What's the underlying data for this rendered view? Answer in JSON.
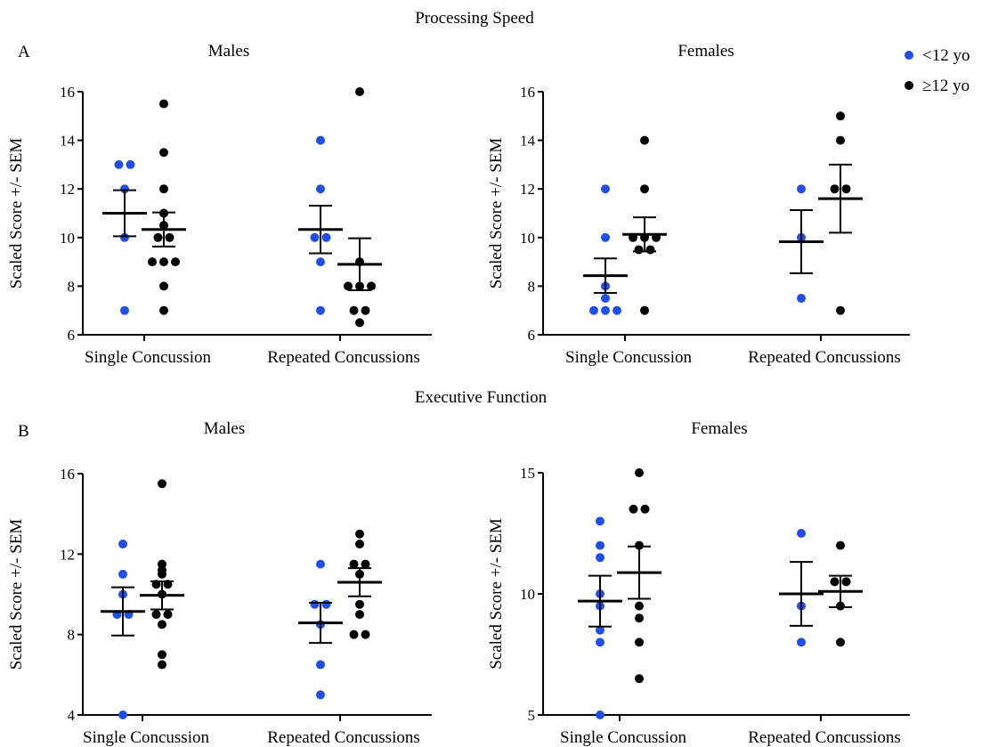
{
  "sections": [
    {
      "letter": "A",
      "title": "Processing Speed"
    },
    {
      "letter": "B",
      "title": "Executive Function"
    }
  ],
  "legend": [
    {
      "label": "<12 yo",
      "color": "#1f4fe6"
    },
    {
      "label": "≥12 yo",
      "color": "#000000"
    }
  ],
  "chart_data": [
    {
      "type": "scatter",
      "section": "Processing Speed",
      "title": "Males",
      "ylabel": "Scaled Score +/- SEM",
      "ylim": [
        6,
        16
      ],
      "yticks": [
        "6",
        "8",
        "10",
        "12",
        "14",
        "16"
      ],
      "categories": [
        "Single Concussion",
        "Repeated Concussions"
      ],
      "groups": [
        {
          "category": 0,
          "series": "<12 yo",
          "color": "#1f4fe6",
          "points": [
            13,
            13,
            12,
            10,
            7
          ],
          "mean": 11.0,
          "sem_low": 10.05,
          "sem_high": 11.95
        },
        {
          "category": 0,
          "series": "≥12 yo",
          "color": "#000000",
          "points": [
            15.5,
            13.5,
            12,
            11,
            10.5,
            10,
            10,
            9,
            9,
            9,
            8,
            7
          ],
          "mean": 10.33,
          "sem_low": 9.63,
          "sem_high": 11.03
        },
        {
          "category": 1,
          "series": "<12 yo",
          "color": "#1f4fe6",
          "points": [
            14,
            12,
            10,
            10,
            9,
            7
          ],
          "mean": 10.33,
          "sem_low": 9.35,
          "sem_high": 11.31
        },
        {
          "category": 1,
          "series": "≥12 yo",
          "color": "#000000",
          "points": [
            16,
            9,
            8,
            8,
            8,
            7,
            7,
            6.5
          ],
          "mean": 8.9,
          "sem_low": 7.83,
          "sem_high": 9.97
        }
      ]
    },
    {
      "type": "scatter",
      "section": "Processing Speed",
      "title": "Females",
      "ylabel": "Scaled Score +/- SEM",
      "ylim": [
        6,
        16
      ],
      "yticks": [
        "6",
        "8",
        "10",
        "12",
        "14",
        "16"
      ],
      "categories": [
        "Single Concussion",
        "Repeated Concussions"
      ],
      "groups": [
        {
          "category": 0,
          "series": "<12 yo",
          "color": "#1f4fe6",
          "points": [
            12,
            10,
            8,
            7.5,
            7,
            7,
            7
          ],
          "mean": 8.43,
          "sem_low": 7.72,
          "sem_high": 9.14
        },
        {
          "category": 0,
          "series": "≥12 yo",
          "color": "#000000",
          "points": [
            14,
            12,
            10,
            10,
            10,
            9.5,
            9.5,
            7
          ],
          "mean": 10.13,
          "sem_low": 9.43,
          "sem_high": 10.83
        },
        {
          "category": 1,
          "series": "<12 yo",
          "color": "#1f4fe6",
          "points": [
            12,
            10,
            7.5
          ],
          "mean": 9.83,
          "sem_low": 8.53,
          "sem_high": 11.13
        },
        {
          "category": 1,
          "series": "≥12 yo",
          "color": "#000000",
          "points": [
            15,
            14,
            12,
            12,
            7
          ],
          "mean": 11.6,
          "sem_low": 10.2,
          "sem_high": 13.0
        }
      ]
    },
    {
      "type": "scatter",
      "section": "Executive Function",
      "title": "Males",
      "ylabel": "Scaled Score +/- SEM",
      "ylim": [
        4,
        16
      ],
      "yticks": [
        "4",
        "8",
        "12",
        "16"
      ],
      "categories": [
        "Single Concussion",
        "Repeated Concussions"
      ],
      "groups": [
        {
          "category": 0,
          "series": "<12 yo",
          "color": "#1f4fe6",
          "points": [
            12.5,
            11,
            10,
            9,
            9,
            4
          ],
          "mean": 9.15,
          "sem_low": 7.95,
          "sem_high": 10.35
        },
        {
          "category": 0,
          "series": "≥12 yo",
          "color": "#000000",
          "points": [
            15.5,
            11.5,
            11.2,
            11,
            10.5,
            10.5,
            10,
            9,
            9,
            8.5,
            7,
            6.5
          ],
          "mean": 9.95,
          "sem_low": 9.25,
          "sem_high": 10.65
        },
        {
          "category": 1,
          "series": "<12 yo",
          "color": "#1f4fe6",
          "points": [
            11.5,
            9.5,
            9.5,
            8.5,
            6.5,
            5
          ],
          "mean": 8.58,
          "sem_low": 7.58,
          "sem_high": 9.58
        },
        {
          "category": 1,
          "series": "≥12 yo",
          "color": "#000000",
          "points": [
            13,
            12.5,
            11.5,
            11.5,
            11,
            9.5,
            9,
            8,
            8
          ],
          "mean": 10.6,
          "sem_low": 9.9,
          "sem_high": 11.3
        }
      ]
    },
    {
      "type": "scatter",
      "section": "Executive Function",
      "title": "Females",
      "ylabel": "Scaled Score +/- SEM",
      "ylim": [
        5,
        15
      ],
      "yticks": [
        "5",
        "10",
        "15"
      ],
      "categories": [
        "Single Concussion",
        "Repeated Concussions"
      ],
      "groups": [
        {
          "category": 0,
          "series": "<12 yo",
          "color": "#1f4fe6",
          "points": [
            13,
            12,
            11.5,
            10,
            9.5,
            8.5,
            8,
            5
          ],
          "mean": 9.7,
          "sem_low": 8.65,
          "sem_high": 10.75
        },
        {
          "category": 0,
          "series": "≥12 yo",
          "color": "#000000",
          "points": [
            15,
            13.5,
            13.5,
            12,
            9.5,
            9,
            8,
            6.5
          ],
          "mean": 10.88,
          "sem_low": 9.8,
          "sem_high": 11.96
        },
        {
          "category": 1,
          "series": "<12 yo",
          "color": "#1f4fe6",
          "points": [
            12.5,
            9.5,
            8
          ],
          "mean": 10.0,
          "sem_low": 8.68,
          "sem_high": 11.32
        },
        {
          "category": 1,
          "series": "≥12 yo",
          "color": "#000000",
          "points": [
            12,
            10.5,
            10.5,
            9.5,
            8
          ],
          "mean": 10.1,
          "sem_low": 9.45,
          "sem_high": 10.75
        }
      ]
    }
  ]
}
